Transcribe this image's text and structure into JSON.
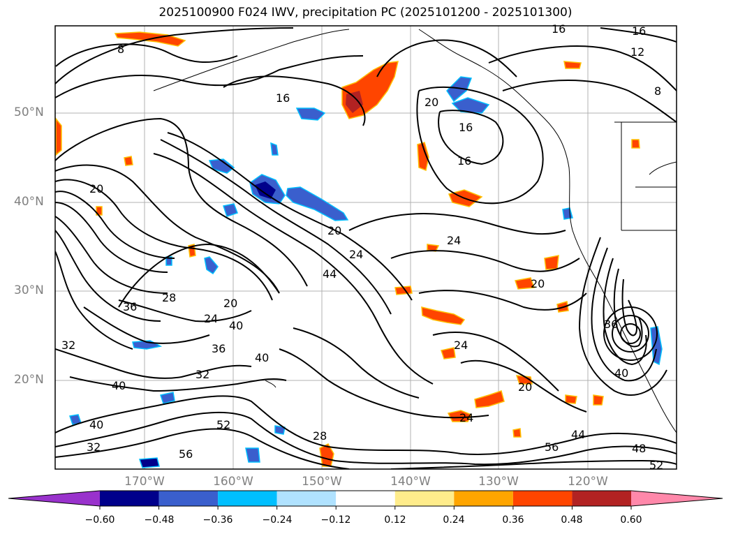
{
  "title": "2025100900 F024 IWV, precipitation PC (2025101200 - 2025101300)",
  "lat_labels": [
    "50°N",
    "40°N",
    "30°N",
    "20°N"
  ],
  "lon_labels": [
    "170°W",
    "160°W",
    "150°W",
    "140°W",
    "130°W",
    "120°W"
  ],
  "contour_labels": [
    "8",
    "16",
    "12",
    "8",
    "16",
    "20",
    "16",
    "16",
    "20",
    "20",
    "24",
    "44",
    "20",
    "24",
    "28",
    "36",
    "24",
    "40",
    "36",
    "40",
    "32",
    "40",
    "28",
    "56",
    "52",
    "32",
    "40",
    "56",
    "44",
    "48",
    "52",
    "24",
    "20",
    "24",
    "20",
    "16",
    "40",
    "36",
    "32"
  ],
  "colorbar": {
    "tick_labels": [
      "−0.60",
      "−0.48",
      "−0.36",
      "−0.24",
      "−0.12",
      "0.12",
      "0.24",
      "0.36",
      "0.48",
      "0.60"
    ],
    "colors": [
      "#9932cc",
      "#00008b",
      "#3a5fcd",
      "#00bfff",
      "#b0e2ff",
      "#ffffff",
      "#ffec8b",
      "#ffa500",
      "#ff4500",
      "#b22222",
      "#ff88aa"
    ]
  }
}
